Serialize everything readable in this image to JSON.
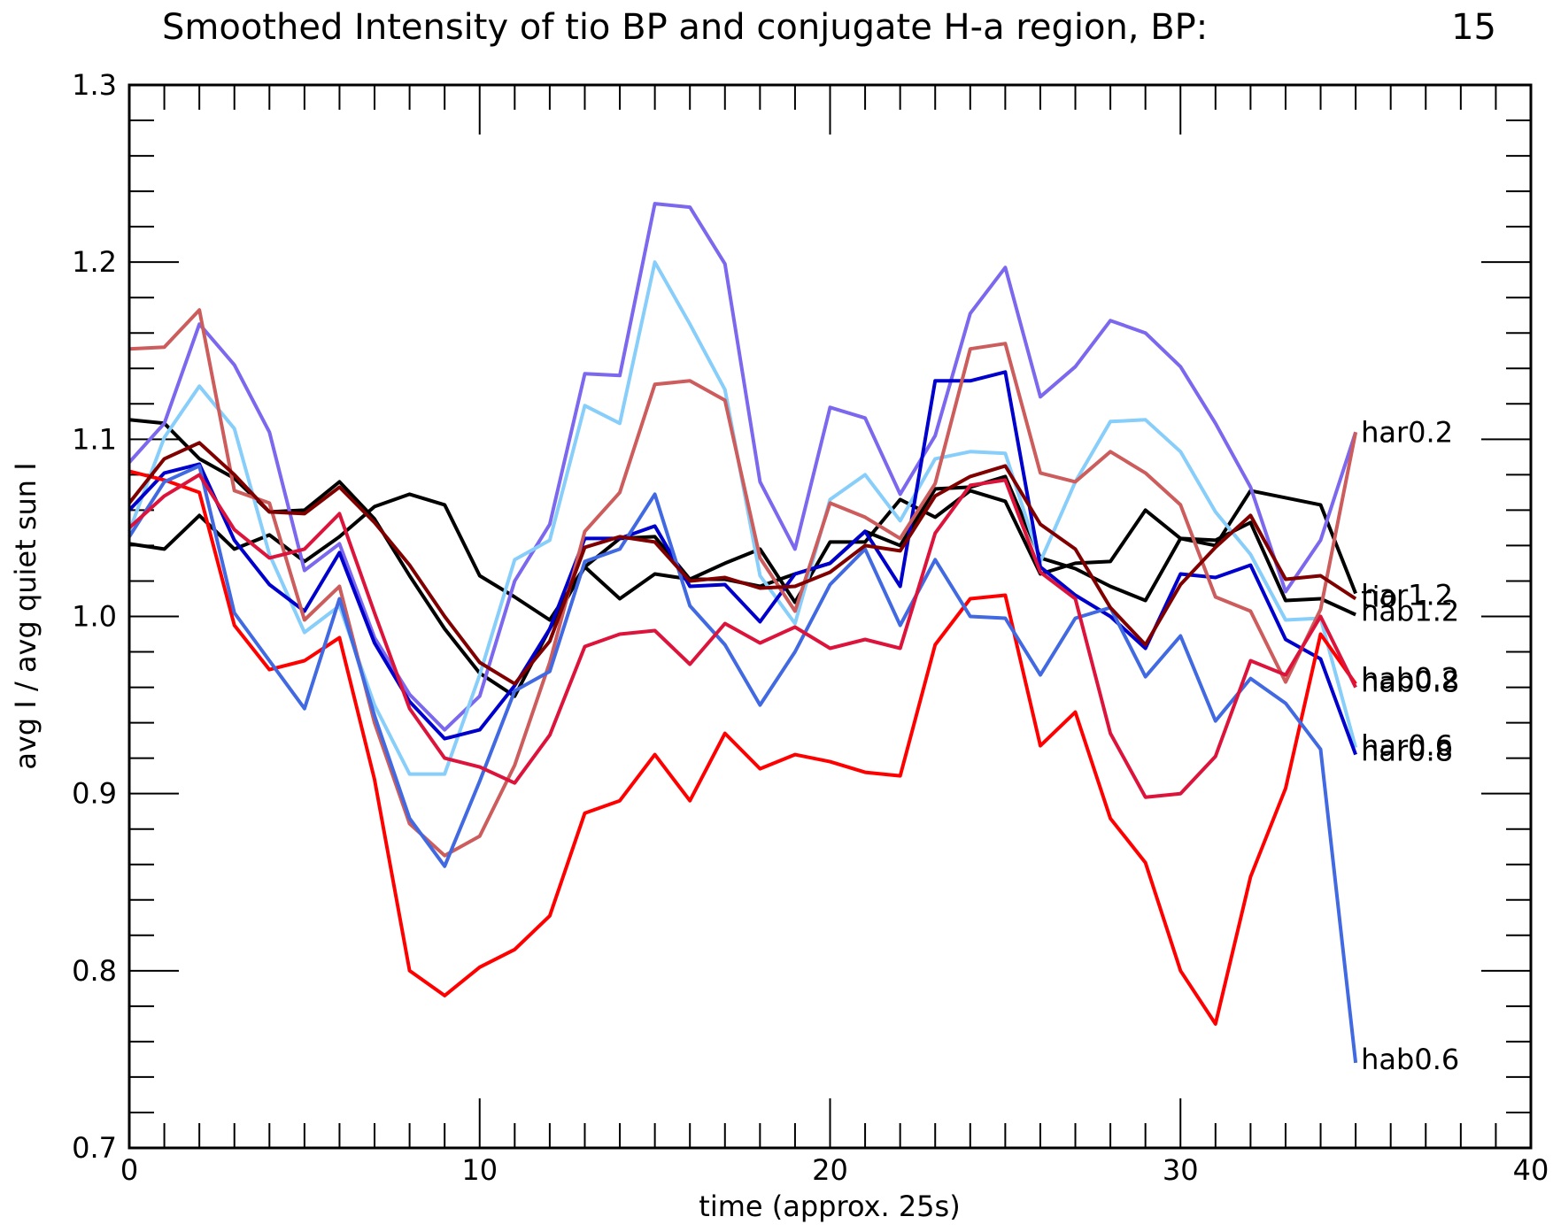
{
  "chart_data": {
    "type": "line",
    "title": "Smoothed Intensity of tio BP and conjugate H-a region, BP:",
    "title_value": "15",
    "xlabel": "time (approx. 25s)",
    "ylabel": "avg I / avg quiet sun I",
    "xlim": [
      0,
      40
    ],
    "ylim": [
      0.7,
      1.3
    ],
    "xticks": [
      0,
      10,
      20,
      30,
      40
    ],
    "xtick_labels": [
      "0",
      "10",
      "20",
      "30",
      "40"
    ],
    "yticks": [
      0.7,
      0.8,
      0.9,
      1.0,
      1.1,
      1.2,
      1.3
    ],
    "ytick_labels": [
      "0.7",
      "0.8",
      "0.9",
      "1.0",
      "1.1",
      "1.2",
      "1.3"
    ],
    "grid": false,
    "x": [
      0,
      1,
      2,
      3,
      4,
      5,
      6,
      7,
      8,
      9,
      10,
      11,
      12,
      13,
      14,
      15,
      16,
      17,
      18,
      19,
      20,
      21,
      22,
      23,
      24,
      25,
      26,
      27,
      28,
      29,
      30,
      31,
      32,
      33,
      34,
      35
    ],
    "series": [
      {
        "name": "tio",
        "color": "#000000",
        "label_y": 1.011,
        "values": [
          1.041,
          1.038,
          1.057,
          1.038,
          1.046,
          1.031,
          1.045,
          1.062,
          1.069,
          1.063,
          1.023,
          1.011,
          0.998,
          1.028,
          1.01,
          1.024,
          1.021,
          1.03,
          1.038,
          1.008,
          1.042,
          1.042,
          1.066,
          1.056,
          1.071,
          1.065,
          1.024,
          1.03,
          1.031,
          1.06,
          1.044,
          1.04,
          1.071,
          1.067,
          1.063,
          1.013
        ]
      },
      {
        "name": "ha",
        "color": "#000000",
        "label_y": 1.104,
        "values": [
          1.111,
          1.109,
          1.089,
          1.078,
          1.059,
          1.06,
          1.076,
          1.055,
          1.023,
          0.993,
          0.968,
          0.955,
          0.993,
          1.028,
          1.044,
          1.045,
          1.021,
          1.021,
          1.017,
          1.024,
          1.03,
          1.048,
          1.04,
          1.072,
          1.073,
          1.079,
          1.033,
          1.027,
          1.017,
          1.009,
          1.044,
          1.043,
          1.053,
          1.009,
          1.01,
          1.001
        ]
      },
      {
        "name": "har0.2",
        "color": "#7b68ee",
        "label_y": 1.104,
        "values": [
          1.087,
          1.109,
          1.165,
          1.142,
          1.104,
          1.026,
          1.041,
          0.988,
          0.956,
          0.936,
          0.955,
          1.02,
          1.052,
          1.137,
          1.136,
          1.233,
          1.231,
          1.199,
          1.076,
          1.038,
          1.118,
          1.112,
          1.069,
          1.102,
          1.171,
          1.197,
          1.124,
          1.141,
          1.167,
          1.16,
          1.141,
          1.109,
          1.073,
          1.014,
          1.043,
          1.104
        ]
      },
      {
        "name": "har0.6",
        "color": "#87cefa",
        "label_y": 0.927,
        "values": [
          1.048,
          1.101,
          1.13,
          1.106,
          1.035,
          0.991,
          1.006,
          0.95,
          0.911,
          0.911,
          0.967,
          1.032,
          1.043,
          1.119,
          1.109,
          1.2,
          1.165,
          1.128,
          1.023,
          0.996,
          1.066,
          1.08,
          1.054,
          1.089,
          1.093,
          1.092,
          1.031,
          1.076,
          1.11,
          1.111,
          1.093,
          1.059,
          1.035,
          0.998,
          0.999,
          0.926
        ]
      },
      {
        "name": "har0.8",
        "color": "#0000cd",
        "label_y": 0.924,
        "values": [
          1.06,
          1.081,
          1.086,
          1.043,
          1.018,
          1.003,
          1.036,
          0.985,
          0.952,
          0.931,
          0.936,
          0.961,
          0.993,
          1.044,
          1.044,
          1.051,
          1.017,
          1.018,
          0.997,
          1.024,
          1.03,
          1.048,
          1.017,
          1.133,
          1.133,
          1.138,
          1.028,
          1.012,
          1.0,
          0.982,
          1.024,
          1.022,
          1.029,
          0.987,
          0.976,
          0.922
        ]
      },
      {
        "name": "har1.2",
        "color": "#cd5c5c",
        "label_y": 1.012,
        "values": [
          1.151,
          1.152,
          1.173,
          1.071,
          1.064,
          0.998,
          1.017,
          0.94,
          0.883,
          0.865,
          0.876,
          0.916,
          0.974,
          1.048,
          1.07,
          1.131,
          1.133,
          1.122,
          1.033,
          1.003,
          1.064,
          1.056,
          1.044,
          1.075,
          1.151,
          1.154,
          1.081,
          1.076,
          1.093,
          1.081,
          1.063,
          1.011,
          1.003,
          0.963,
          1.004,
          1.104
        ]
      },
      {
        "name": "hab0.2",
        "color": "#ff0000",
        "label_y": 0.965,
        "values": [
          1.082,
          1.077,
          1.07,
          0.995,
          0.97,
          0.975,
          0.988,
          0.908,
          0.8,
          0.786,
          0.802,
          0.812,
          0.831,
          0.889,
          0.896,
          0.922,
          0.896,
          0.934,
          0.914,
          0.922,
          0.918,
          0.912,
          0.91,
          0.984,
          1.01,
          1.012,
          0.927,
          0.946,
          0.886,
          0.861,
          0.8,
          0.77,
          0.853,
          0.903,
          0.99,
          0.962
        ]
      },
      {
        "name": "hab0.6",
        "color": "#4169e1",
        "label_y": 0.75,
        "values": [
          1.045,
          1.076,
          1.085,
          1.002,
          0.975,
          0.948,
          1.01,
          0.944,
          0.886,
          0.859,
          0.907,
          0.958,
          0.969,
          1.031,
          1.038,
          1.069,
          1.006,
          0.984,
          0.95,
          0.98,
          1.018,
          1.038,
          0.995,
          1.032,
          1.0,
          0.999,
          0.967,
          0.999,
          1.005,
          0.966,
          0.989,
          0.941,
          0.965,
          0.951,
          0.925,
          0.748
        ]
      },
      {
        "name": "hab0.8",
        "color": "#dc143c",
        "label_y": 0.963,
        "values": [
          1.05,
          1.068,
          1.08,
          1.049,
          1.033,
          1.038,
          1.058,
          1.002,
          0.948,
          0.92,
          0.915,
          0.906,
          0.933,
          0.983,
          0.99,
          0.992,
          0.973,
          0.996,
          0.985,
          0.994,
          0.982,
          0.987,
          0.982,
          1.047,
          1.074,
          1.077,
          1.025,
          1.01,
          0.934,
          0.898,
          0.9,
          0.921,
          0.975,
          0.967,
          1.0,
          0.96
        ]
      },
      {
        "name": "hab1.2",
        "color": "#800000",
        "label_y": 1.003,
        "values": [
          1.064,
          1.089,
          1.098,
          1.08,
          1.059,
          1.058,
          1.073,
          1.053,
          1.029,
          1.0,
          0.974,
          0.962,
          0.986,
          1.039,
          1.045,
          1.042,
          1.02,
          1.022,
          1.016,
          1.017,
          1.025,
          1.04,
          1.037,
          1.068,
          1.079,
          1.085,
          1.052,
          1.038,
          1.005,
          0.984,
          1.018,
          1.039,
          1.057,
          1.021,
          1.023,
          1.01
        ]
      }
    ]
  }
}
